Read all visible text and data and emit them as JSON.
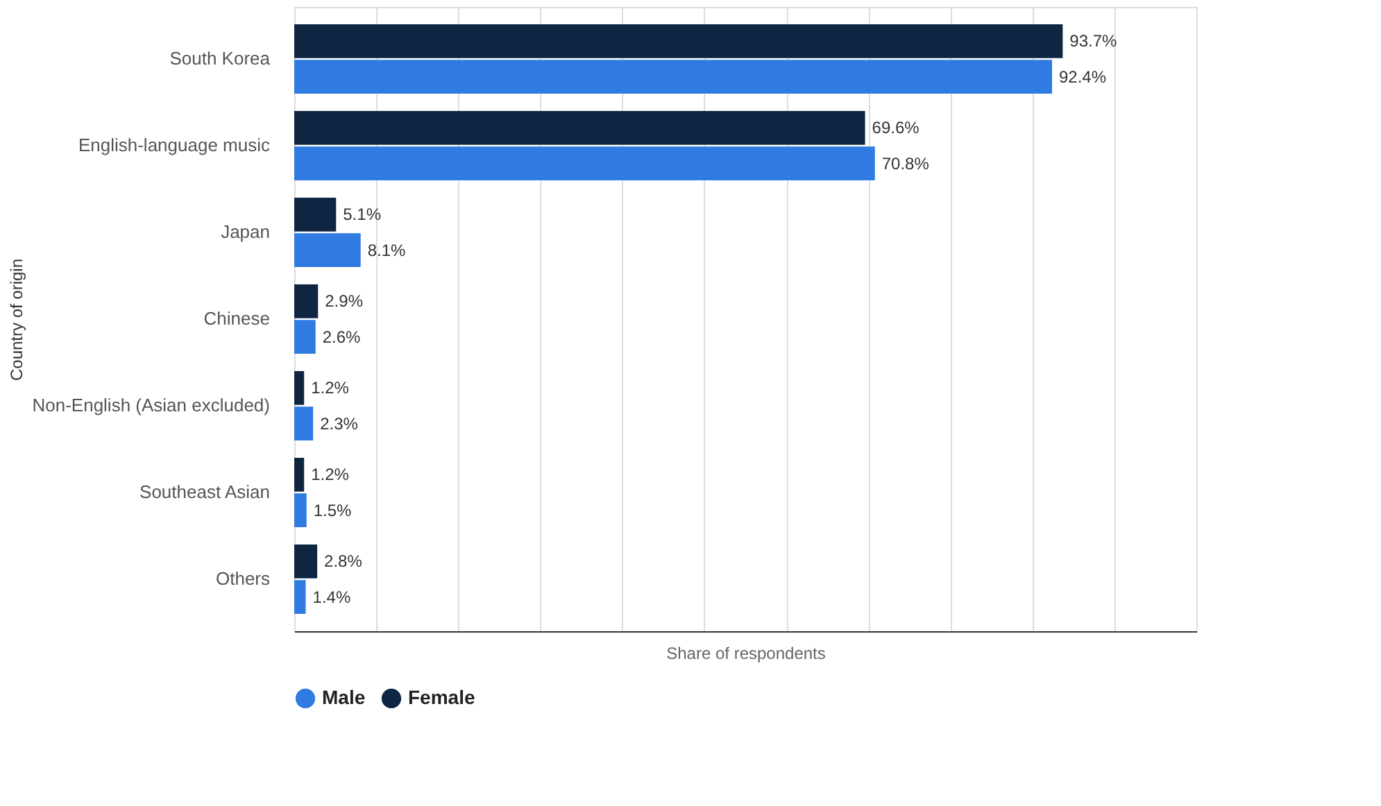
{
  "chart_data": {
    "type": "bar",
    "orientation": "horizontal",
    "xlabel": "Share of respondents",
    "ylabel": "Country of origin",
    "categories": [
      "South Korea",
      "English-language music",
      "Japan",
      "Chinese",
      "Non-English (Asian excluded)",
      "Southeast Asian",
      "Others"
    ],
    "series": [
      {
        "name": "Female",
        "color": "#0f2642",
        "values": [
          93.7,
          69.6,
          5.1,
          2.9,
          1.2,
          1.2,
          2.8
        ],
        "value_labels": [
          "93.7%",
          "69.6%",
          "5.1%",
          "2.9%",
          "1.2%",
          "1.2%",
          "2.8%"
        ]
      },
      {
        "name": "Male",
        "color": "#2f7be2",
        "values": [
          92.4,
          70.8,
          8.1,
          2.6,
          2.3,
          1.5,
          1.4
        ],
        "value_labels": [
          "92.4%",
          "70.8%",
          "8.1%",
          "2.6%",
          "2.3%",
          "1.5%",
          "1.4%"
        ]
      }
    ],
    "xlim": [
      0,
      110
    ],
    "xticks": [
      {
        "value": 0,
        "label": null
      },
      {
        "value": 10,
        "label": null
      },
      {
        "value": 20,
        "label": null
      },
      {
        "value": 30,
        "label": null
      },
      {
        "value": 40,
        "label": null
      },
      {
        "value": 50,
        "label": null
      },
      {
        "value": 60,
        "label": null
      },
      {
        "value": 70,
        "label": null
      },
      {
        "value": 80,
        "label": null
      },
      {
        "value": 90,
        "label": null
      },
      {
        "value": 100,
        "label": null
      },
      {
        "value": 110,
        "label": null
      }
    ],
    "grid": "x",
    "legend": "bottom",
    "tick_labels": "y"
  }
}
